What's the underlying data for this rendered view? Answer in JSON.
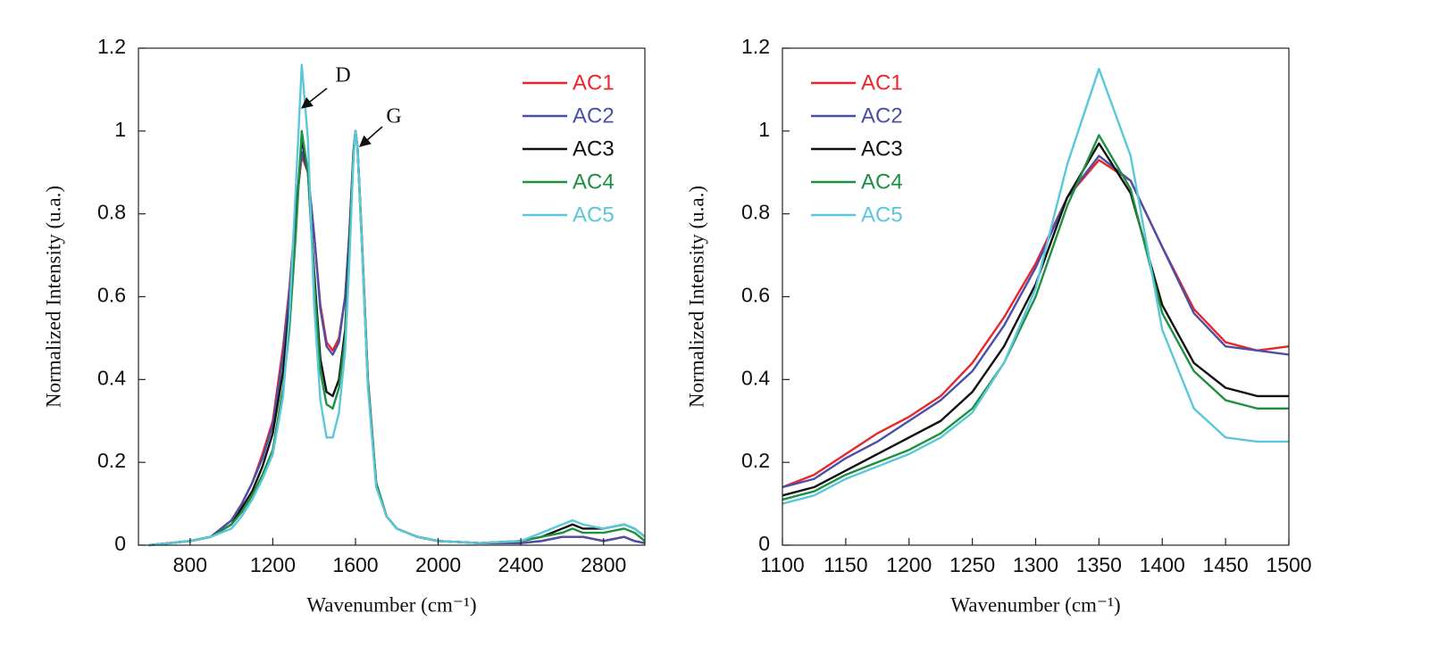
{
  "chart_data": [
    {
      "type": "line",
      "x_label": "Wavenumber (cm⁻¹)",
      "y_label": "Normalized Intensity (u.a.)",
      "xlim": [
        550,
        3000
      ],
      "ylim": [
        0,
        1.2
      ],
      "xticks": [
        800,
        1200,
        1600,
        2000,
        2400,
        2800
      ],
      "yticks": [
        0,
        0.2,
        0.4,
        0.6,
        0.8,
        1,
        1.2
      ],
      "legend": "upper right",
      "grid": false,
      "annotations": [
        "D",
        "G"
      ],
      "x": [
        600,
        700,
        800,
        900,
        1000,
        1050,
        1100,
        1150,
        1200,
        1250,
        1280,
        1310,
        1340,
        1370,
        1400,
        1430,
        1460,
        1490,
        1520,
        1550,
        1570,
        1590,
        1600,
        1610,
        1630,
        1660,
        1700,
        1750,
        1800,
        1900,
        2000,
        2200,
        2400,
        2500,
        2600,
        2650,
        2700,
        2800,
        2900,
        2950,
        3000
      ],
      "series": [
        {
          "name": "AC1",
          "color": "#e8262b",
          "values": [
            0,
            0.005,
            0.01,
            0.02,
            0.06,
            0.1,
            0.15,
            0.22,
            0.3,
            0.48,
            0.62,
            0.8,
            0.94,
            0.9,
            0.75,
            0.58,
            0.49,
            0.47,
            0.5,
            0.6,
            0.75,
            0.95,
            1,
            0.96,
            0.75,
            0.4,
            0.15,
            0.07,
            0.04,
            0.02,
            0.01,
            0.005,
            0.005,
            0.01,
            0.02,
            0.02,
            0.02,
            0.01,
            0.02,
            0.01,
            0.005
          ]
        },
        {
          "name": "AC2",
          "color": "#4a4fa8",
          "values": [
            0,
            0.005,
            0.01,
            0.02,
            0.06,
            0.1,
            0.15,
            0.21,
            0.29,
            0.46,
            0.61,
            0.8,
            0.95,
            0.9,
            0.75,
            0.57,
            0.48,
            0.46,
            0.49,
            0.6,
            0.75,
            0.95,
            1,
            0.96,
            0.75,
            0.4,
            0.15,
            0.07,
            0.04,
            0.02,
            0.01,
            0.005,
            0.005,
            0.01,
            0.02,
            0.02,
            0.02,
            0.01,
            0.02,
            0.01,
            0.005
          ]
        },
        {
          "name": "AC3",
          "color": "#111111",
          "values": [
            0,
            0.005,
            0.01,
            0.02,
            0.05,
            0.09,
            0.13,
            0.19,
            0.27,
            0.42,
            0.57,
            0.78,
            0.98,
            0.9,
            0.66,
            0.45,
            0.37,
            0.36,
            0.4,
            0.52,
            0.72,
            0.94,
            1,
            0.96,
            0.74,
            0.39,
            0.15,
            0.07,
            0.04,
            0.02,
            0.01,
            0.005,
            0.01,
            0.02,
            0.04,
            0.05,
            0.04,
            0.04,
            0.05,
            0.04,
            0.02
          ]
        },
        {
          "name": "AC4",
          "color": "#1f8f42",
          "values": [
            0,
            0.005,
            0.01,
            0.02,
            0.05,
            0.08,
            0.12,
            0.17,
            0.23,
            0.38,
            0.52,
            0.74,
            1,
            0.9,
            0.64,
            0.42,
            0.34,
            0.33,
            0.38,
            0.5,
            0.71,
            0.94,
            1,
            0.96,
            0.74,
            0.39,
            0.15,
            0.07,
            0.04,
            0.02,
            0.01,
            0.005,
            0.01,
            0.02,
            0.03,
            0.04,
            0.03,
            0.03,
            0.04,
            0.03,
            0.01
          ]
        },
        {
          "name": "AC5",
          "color": "#5bc8d9",
          "values": [
            0,
            0.005,
            0.01,
            0.02,
            0.04,
            0.07,
            0.11,
            0.16,
            0.22,
            0.36,
            0.55,
            0.85,
            1.16,
            0.98,
            0.58,
            0.35,
            0.26,
            0.26,
            0.32,
            0.47,
            0.68,
            0.93,
            1,
            0.96,
            0.74,
            0.38,
            0.14,
            0.07,
            0.04,
            0.02,
            0.01,
            0.005,
            0.01,
            0.03,
            0.05,
            0.06,
            0.05,
            0.04,
            0.05,
            0.04,
            0.02
          ]
        }
      ]
    },
    {
      "type": "line",
      "x_label": "Wavenumber (cm⁻¹)",
      "y_label": "Normalized Intensity (u.a.)",
      "xlim": [
        1100,
        1500
      ],
      "ylim": [
        0,
        1.2
      ],
      "xticks": [
        1100,
        1150,
        1200,
        1250,
        1300,
        1350,
        1400,
        1450,
        1500
      ],
      "yticks": [
        0,
        0.2,
        0.4,
        0.6,
        0.8,
        1,
        1.2
      ],
      "legend": "upper left",
      "grid": false,
      "x": [
        1100,
        1125,
        1150,
        1175,
        1200,
        1225,
        1250,
        1275,
        1300,
        1325,
        1350,
        1375,
        1400,
        1425,
        1450,
        1475,
        1500
      ],
      "series": [
        {
          "name": "AC1",
          "color": "#e8262b",
          "values": [
            0.14,
            0.17,
            0.22,
            0.27,
            0.31,
            0.36,
            0.44,
            0.55,
            0.68,
            0.84,
            0.93,
            0.88,
            0.72,
            0.57,
            0.49,
            0.47,
            0.48
          ]
        },
        {
          "name": "AC2",
          "color": "#4a4fa8",
          "values": [
            0.14,
            0.16,
            0.21,
            0.25,
            0.3,
            0.35,
            0.42,
            0.53,
            0.67,
            0.84,
            0.94,
            0.88,
            0.72,
            0.56,
            0.48,
            0.47,
            0.46
          ]
        },
        {
          "name": "AC3",
          "color": "#111111",
          "values": [
            0.12,
            0.14,
            0.18,
            0.22,
            0.26,
            0.3,
            0.37,
            0.48,
            0.63,
            0.84,
            0.97,
            0.85,
            0.58,
            0.44,
            0.38,
            0.36,
            0.36
          ]
        },
        {
          "name": "AC4",
          "color": "#1f8f42",
          "values": [
            0.11,
            0.13,
            0.17,
            0.2,
            0.23,
            0.27,
            0.33,
            0.44,
            0.6,
            0.82,
            0.99,
            0.86,
            0.56,
            0.42,
            0.35,
            0.33,
            0.33
          ]
        },
        {
          "name": "AC5",
          "color": "#5bc8d9",
          "values": [
            0.1,
            0.12,
            0.16,
            0.19,
            0.22,
            0.26,
            0.32,
            0.44,
            0.62,
            0.92,
            1.15,
            0.94,
            0.52,
            0.33,
            0.26,
            0.25,
            0.25
          ]
        }
      ]
    }
  ]
}
